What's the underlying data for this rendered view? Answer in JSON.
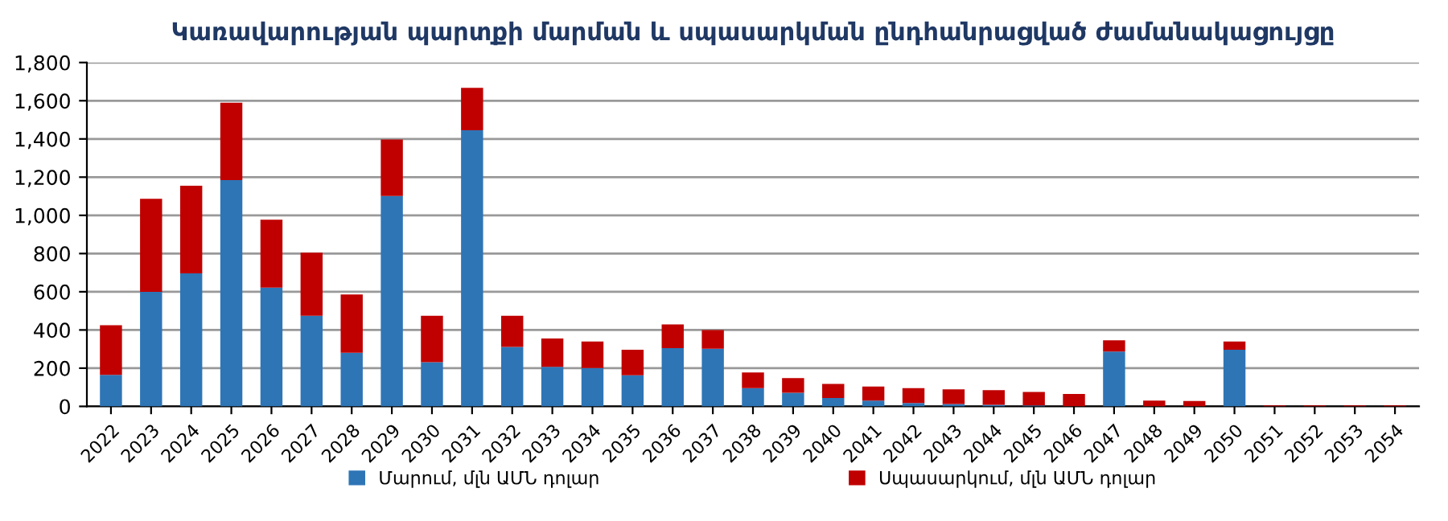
{
  "chart_data": {
    "type": "bar",
    "stacked": true,
    "title": "Կառավարության պարտքի մարման և սպասարկման ընդհանրացված ժամանակացույցը",
    "categories": [
      "2022",
      "2023",
      "2024",
      "2025",
      "2026",
      "2027",
      "2028",
      "2029",
      "2030",
      "2031",
      "2032",
      "2033",
      "2034",
      "2035",
      "2036",
      "2037",
      "2038",
      "2039",
      "2040",
      "2041",
      "2042",
      "2043",
      "2044",
      "2045",
      "2046",
      "2047",
      "2048",
      "2049",
      "2050",
      "2051",
      "2052",
      "2053",
      "2054"
    ],
    "series": [
      {
        "name": "Մարում, մլն ԱՄՆ դոլար",
        "color": "#2e75b6",
        "values": [
          165,
          600,
          696,
          1185,
          622,
          474,
          281,
          1101,
          231,
          1445,
          311,
          207,
          201,
          163,
          305,
          302,
          95,
          71,
          44,
          30,
          18,
          12,
          8,
          5,
          0,
          287,
          0,
          0,
          296,
          0,
          0,
          0,
          0
        ]
      },
      {
        "name": "Սպասարկում, մլն ԱՄՆ դոլար",
        "color": "#c00000",
        "values": [
          260,
          487,
          459,
          405,
          355,
          331,
          305,
          296,
          243,
          222,
          163,
          148,
          139,
          133,
          124,
          98,
          83,
          77,
          74,
          74,
          77,
          77,
          77,
          70,
          65,
          59,
          30,
          28,
          44,
          5,
          5,
          5,
          5
        ]
      }
    ],
    "ylim": [
      0,
      1800
    ],
    "yticks": [
      {
        "value": 0,
        "label": "0"
      },
      {
        "value": 200,
        "label": "200"
      },
      {
        "value": 400,
        "label": "400"
      },
      {
        "value": 600,
        "label": "600"
      },
      {
        "value": 800,
        "label": "800"
      },
      {
        "value": 1000,
        "label": "1,000"
      },
      {
        "value": 1200,
        "label": "1,200"
      },
      {
        "value": 1400,
        "label": "1,400"
      },
      {
        "value": 1600,
        "label": "1,600"
      },
      {
        "value": 1800,
        "label": "1,800"
      }
    ],
    "grid": "y",
    "legend": "bottom"
  }
}
